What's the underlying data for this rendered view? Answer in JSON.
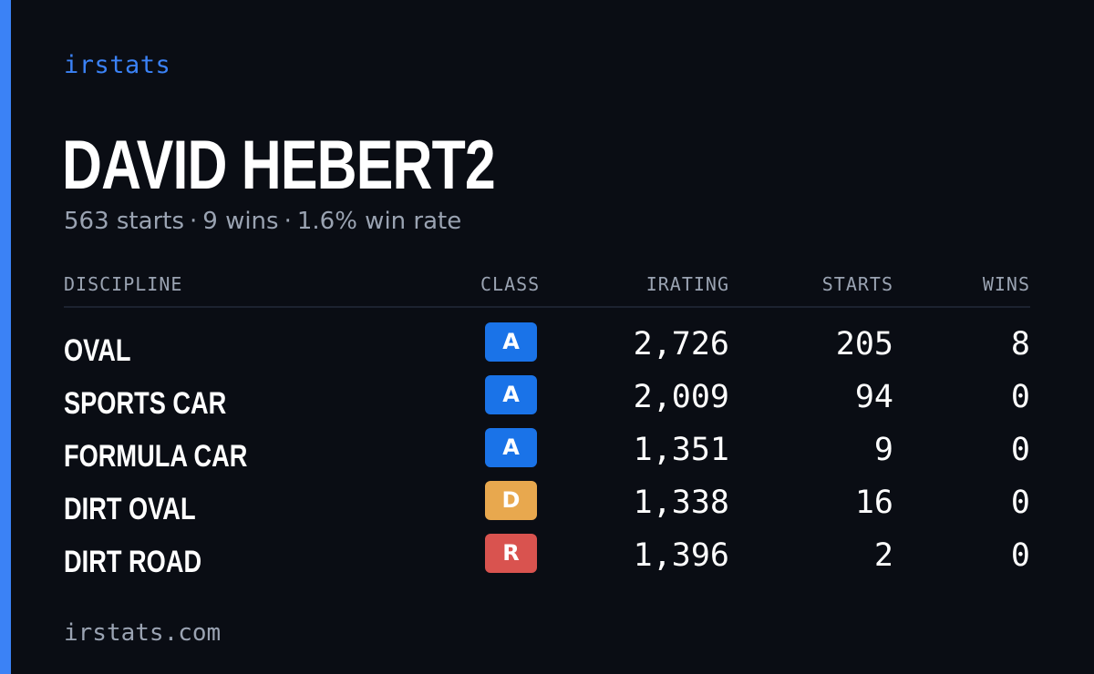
{
  "brand": "irstats",
  "driver_name": "DAVID HEBERT2",
  "summary": {
    "starts": "563 starts",
    "wins": "9 wins",
    "win_rate": "1.6% win rate",
    "separator": "·"
  },
  "table": {
    "headers": {
      "discipline": "DISCIPLINE",
      "class": "CLASS",
      "irating": "IRATING",
      "starts": "STARTS",
      "wins": "WINS"
    },
    "rows": [
      {
        "discipline": "OVAL",
        "class": "A",
        "class_color": "#1a73e8",
        "irating": "2,726",
        "starts": "205",
        "wins": "8"
      },
      {
        "discipline": "SPORTS CAR",
        "class": "A",
        "class_color": "#1a73e8",
        "irating": "2,009",
        "starts": "94",
        "wins": "0"
      },
      {
        "discipline": "FORMULA CAR",
        "class": "A",
        "class_color": "#1a73e8",
        "irating": "1,351",
        "starts": "9",
        "wins": "0"
      },
      {
        "discipline": "DIRT OVAL",
        "class": "D",
        "class_color": "#e8a84e",
        "irating": "1,338",
        "starts": "16",
        "wins": "0"
      },
      {
        "discipline": "DIRT ROAD",
        "class": "R",
        "class_color": "#d9534f",
        "irating": "1,396",
        "starts": "2",
        "wins": "0"
      }
    ]
  },
  "footer": "irstats.com",
  "colors": {
    "background": "#0a0d14",
    "accent": "#3b82f6",
    "muted_text": "#9aa3b2",
    "text": "#ffffff"
  }
}
